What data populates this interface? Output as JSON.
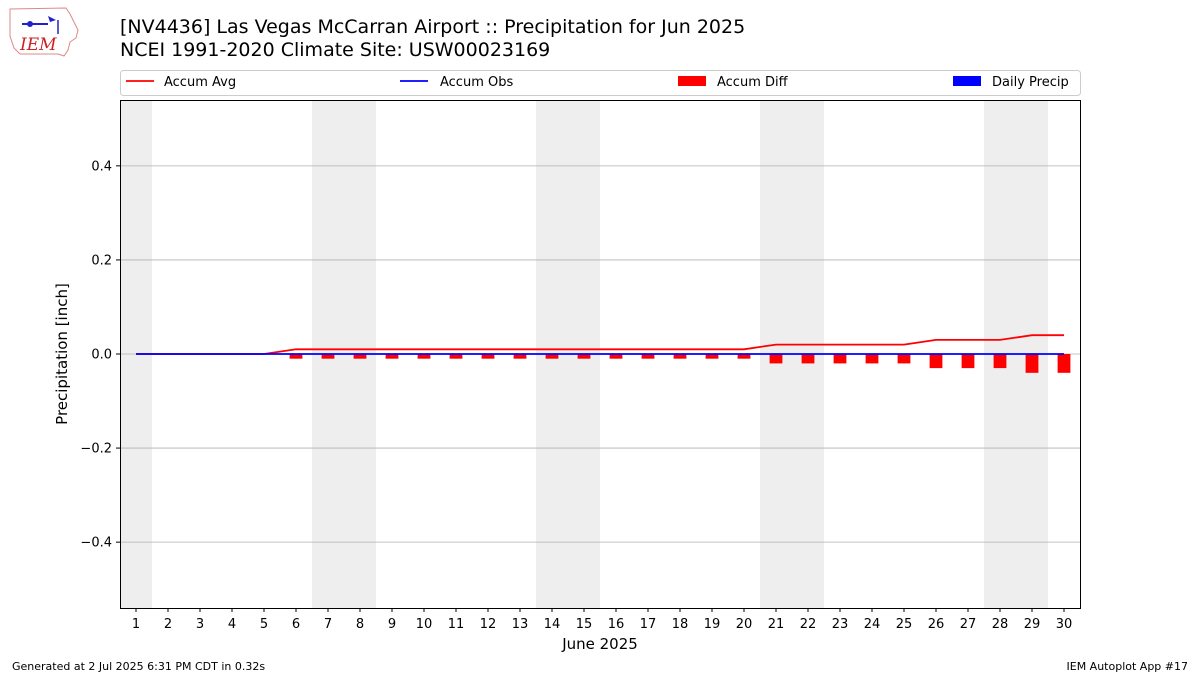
{
  "header": {
    "title_line1": "[NV4436] Las Vegas McCarran Airport :: Precipitation for Jun 2025",
    "title_line2": "NCEI 1991-2020 Climate Site: USW00023169",
    "logo_text": "IEM"
  },
  "footer": {
    "left": "Generated at 2 Jul 2025 6:31 PM CDT in 0.32s",
    "right": "IEM Autoplot App #17"
  },
  "chart_data": {
    "type": "line",
    "xlabel": "June 2025",
    "ylabel": "Precipitation [inch]",
    "xlim": [
      0.5,
      30.5
    ],
    "ylim": [
      -0.54,
      0.54
    ],
    "yticks": [
      -0.4,
      -0.2,
      0.0,
      0.2,
      0.4
    ],
    "ytick_labels": [
      "−0.4",
      "−0.2",
      "0.0",
      "0.2",
      "0.4"
    ],
    "x": [
      1,
      2,
      3,
      4,
      5,
      6,
      7,
      8,
      9,
      10,
      11,
      12,
      13,
      14,
      15,
      16,
      17,
      18,
      19,
      20,
      21,
      22,
      23,
      24,
      25,
      26,
      27,
      28,
      29,
      30
    ],
    "grid": "horizontal",
    "legend_position": "top",
    "weekend_shading": [
      [
        0.5,
        1.5
      ],
      [
        6.5,
        8.5
      ],
      [
        13.5,
        15.5
      ],
      [
        20.5,
        22.5
      ],
      [
        27.5,
        29.5
      ]
    ],
    "series": [
      {
        "name": "Accum Avg",
        "type": "line",
        "color": "#ff0000",
        "values": [
          0,
          0,
          0,
          0,
          0,
          0.01,
          0.01,
          0.01,
          0.01,
          0.01,
          0.01,
          0.01,
          0.01,
          0.01,
          0.01,
          0.01,
          0.01,
          0.01,
          0.01,
          0.01,
          0.02,
          0.02,
          0.02,
          0.02,
          0.02,
          0.03,
          0.03,
          0.03,
          0.04,
          0.04
        ]
      },
      {
        "name": "Accum Obs",
        "type": "line",
        "color": "#0000ff",
        "values": [
          0,
          0,
          0,
          0,
          0,
          0,
          0,
          0,
          0,
          0,
          0,
          0,
          0,
          0,
          0,
          0,
          0,
          0,
          0,
          0,
          0,
          0,
          0,
          0,
          0,
          0,
          0,
          0,
          0,
          0
        ]
      },
      {
        "name": "Accum Diff",
        "type": "bar",
        "color": "#ff0000",
        "values": [
          0,
          0,
          0,
          0,
          0,
          -0.01,
          -0.01,
          -0.01,
          -0.01,
          -0.01,
          -0.01,
          -0.01,
          -0.01,
          -0.01,
          -0.01,
          -0.01,
          -0.01,
          -0.01,
          -0.01,
          -0.01,
          -0.02,
          -0.02,
          -0.02,
          -0.02,
          -0.02,
          -0.03,
          -0.03,
          -0.03,
          -0.04,
          -0.04
        ]
      },
      {
        "name": "Daily Precip",
        "type": "bar",
        "color": "#0000ff",
        "values": [
          0,
          0,
          0,
          0,
          0,
          0,
          0,
          0,
          0,
          0,
          0,
          0,
          0,
          0,
          0,
          0,
          0,
          0,
          0,
          0,
          0,
          0,
          0,
          0,
          0,
          0,
          0,
          0,
          0,
          0
        ]
      }
    ]
  }
}
